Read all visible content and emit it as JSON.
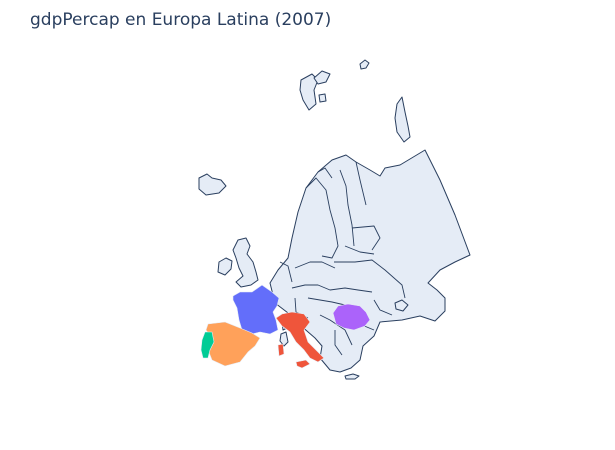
{
  "title": "gdpPercap en Europa Latina (2007)",
  "highlighted_countries": [
    {
      "name": "France",
      "color": "#636efa"
    },
    {
      "name": "Spain",
      "color": "#ffa15a"
    },
    {
      "name": "Portugal",
      "color": "#00cc96"
    },
    {
      "name": "Italy",
      "color": "#ef553b"
    },
    {
      "name": "Romania",
      "color": "#ab63fa"
    }
  ],
  "colors": {
    "land": "#e5ecf6",
    "border": "#2a3f5f",
    "background": "#ffffff"
  }
}
